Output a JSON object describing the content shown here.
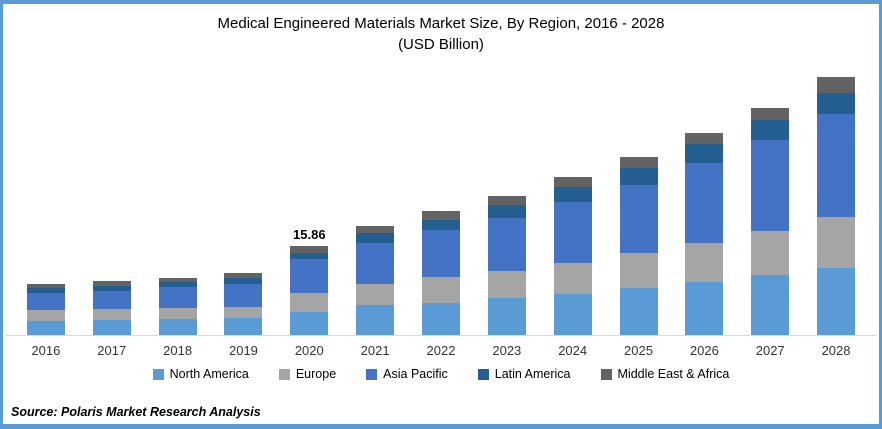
{
  "title": {
    "line1": "Medical Engineered Materials Market Size, By Region, 2016 - 2028",
    "line2": "(USD Billion)"
  },
  "source": "Source: Polaris Market Research Analysis",
  "frame": {
    "border_color": "#5B9BD5",
    "axis_line_color": "#D9D9D9"
  },
  "chart_data": {
    "type": "bar",
    "stacked": true,
    "title": "Medical Engineered Materials Market Size, By Region, 2016 - 2028",
    "subtitle": "(USD Billion)",
    "xlabel": "",
    "ylabel": "USD Billion",
    "ylim": [
      0,
      50
    ],
    "grid": false,
    "legend_position": "bottom",
    "categories": [
      "2016",
      "2017",
      "2018",
      "2019",
      "2020",
      "2021",
      "2022",
      "2023",
      "2024",
      "2025",
      "2026",
      "2027",
      "2028"
    ],
    "series": [
      {
        "name": "North America",
        "color": "#5B9BD5",
        "values": [
          2.53,
          2.71,
          2.78,
          2.96,
          4.15,
          5.35,
          5.77,
          6.52,
          7.23,
          8.43,
          9.45,
          10.62,
          11.99
        ]
      },
      {
        "name": "Europe",
        "color": "#A5A5A5",
        "values": [
          1.96,
          1.96,
          2.08,
          2.08,
          3.39,
          3.74,
          4.63,
          4.88,
          5.65,
          6.24,
          7.0,
          7.91,
          9.09
        ]
      },
      {
        "name": "Asia Pacific",
        "color": "#4472C4",
        "values": [
          3.08,
          3.26,
          3.74,
          3.97,
          5.94,
          7.38,
          8.38,
          9.5,
          10.82,
          12.06,
          14.13,
          16.15,
          18.23
        ]
      },
      {
        "name": "Latin America",
        "color": "#255E91",
        "values": [
          0.77,
          0.89,
          0.89,
          1.07,
          1.19,
          1.71,
          1.71,
          2.19,
          2.6,
          3.12,
          3.39,
          3.64,
          3.87
        ]
      },
      {
        "name": "Middle East & Africa",
        "color": "#636363",
        "values": [
          0.71,
          0.77,
          0.71,
          0.89,
          1.19,
          1.32,
          1.6,
          1.73,
          1.83,
          1.87,
          1.96,
          2.19,
          2.85
        ]
      }
    ],
    "annotations": [
      {
        "category": "2020",
        "label": "15.86"
      }
    ],
    "totals_approx": [
      9.05,
      9.59,
      10.2,
      10.97,
      15.86,
      19.51,
      22.09,
      24.82,
      28.13,
      31.72,
      35.93,
      40.51,
      46.03
    ]
  }
}
